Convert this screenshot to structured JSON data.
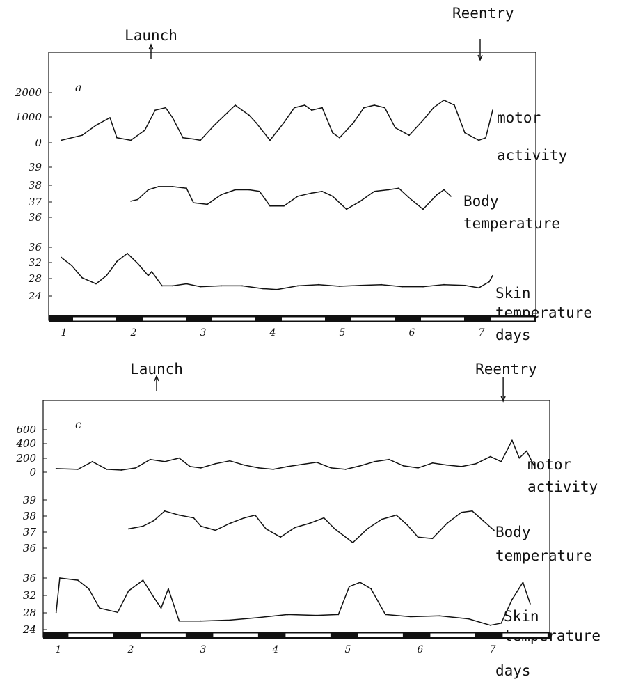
{
  "colors": {
    "ink": "#111111",
    "paper": "#ffffff"
  },
  "chart_data": [
    {
      "type": "line",
      "panel_label": "a",
      "launch_label": "Launch",
      "reentry_label": "Reentry",
      "launch_day": 2.3,
      "reentry_day": 7.2,
      "x_range": [
        1,
        7.3
      ],
      "day_ticks": [
        "1",
        "2",
        "3",
        "4",
        "5",
        "6",
        "7"
      ],
      "xlabel": "days",
      "subplots": [
        {
          "series_label": [
            "motor",
            "activity"
          ],
          "yticks": [
            "2000",
            "1000",
            "0"
          ],
          "ylim": [
            0,
            2000
          ],
          "x": [
            1.0,
            1.3,
            1.5,
            1.7,
            1.8,
            2.0,
            2.2,
            2.35,
            2.5,
            2.6,
            2.75,
            2.9,
            3.0,
            3.2,
            3.35,
            3.5,
            3.7,
            3.8,
            4.0,
            4.2,
            4.35,
            4.5,
            4.6,
            4.75,
            4.9,
            5.0,
            5.2,
            5.35,
            5.5,
            5.65,
            5.8,
            6.0,
            6.2,
            6.35,
            6.5,
            6.65,
            6.8,
            7.0,
            7.1,
            7.2
          ],
          "y": [
            100,
            300,
            700,
            1000,
            200,
            100,
            500,
            1300,
            1400,
            1000,
            200,
            150,
            100,
            700,
            1100,
            1500,
            1100,
            800,
            100,
            800,
            1400,
            1500,
            1300,
            1400,
            400,
            200,
            800,
            1400,
            1500,
            1400,
            600,
            300,
            900,
            1400,
            1700,
            1500,
            400,
            100,
            200,
            1300
          ]
        },
        {
          "series_label": [
            "Body",
            "temperature"
          ],
          "yticks": [
            "39",
            "38",
            "37",
            "36"
          ],
          "ylim": [
            35.9,
            39
          ],
          "x": [
            2.0,
            2.1,
            2.25,
            2.4,
            2.6,
            2.8,
            2.9,
            3.1,
            3.3,
            3.5,
            3.7,
            3.85,
            4.0,
            4.2,
            4.4,
            4.6,
            4.75,
            4.9,
            5.1,
            5.3,
            5.5,
            5.7,
            5.85,
            6.0,
            6.2,
            6.4,
            6.5,
            6.6
          ],
          "y": [
            36.9,
            37.0,
            37.6,
            37.8,
            37.8,
            37.7,
            36.8,
            36.7,
            37.3,
            37.6,
            37.6,
            37.5,
            36.6,
            36.6,
            37.2,
            37.4,
            37.5,
            37.2,
            36.4,
            36.9,
            37.5,
            37.6,
            37.7,
            37.1,
            36.4,
            37.3,
            37.6,
            37.2
          ]
        },
        {
          "series_label": [
            "Skin",
            "temperature"
          ],
          "yticks": [
            "36",
            "32",
            "28",
            "24"
          ],
          "ylim": [
            24,
            36
          ],
          "x": [
            1.0,
            1.15,
            1.3,
            1.5,
            1.65,
            1.8,
            1.95,
            2.1,
            2.25,
            2.3,
            2.45,
            2.6,
            2.8,
            3.0,
            3.3,
            3.6,
            3.9,
            4.1,
            4.4,
            4.7,
            5.0,
            5.3,
            5.6,
            5.9,
            6.2,
            6.5,
            6.8,
            7.0,
            7.15,
            7.2
          ],
          "y": [
            33.5,
            31.5,
            28.5,
            27.0,
            29.0,
            32.5,
            34.5,
            32.0,
            29.0,
            30.0,
            26.5,
            26.5,
            27.0,
            26.3,
            26.5,
            26.5,
            25.8,
            25.6,
            26.5,
            26.8,
            26.4,
            26.6,
            26.8,
            26.3,
            26.3,
            26.8,
            26.6,
            26.0,
            27.5,
            29.0
          ]
        }
      ]
    },
    {
      "type": "line",
      "panel_label": "c",
      "launch_label": "Launch",
      "reentry_label": "Reentry",
      "launch_day": 2.55,
      "reentry_day": 7.35,
      "x_range": [
        1,
        7.6
      ],
      "day_ticks": [
        "1",
        "2",
        "3",
        "4",
        "5",
        "6",
        "7"
      ],
      "xlabel": "days",
      "subplots": [
        {
          "series_label": [
            "motor",
            "activity"
          ],
          "yticks": [
            "600",
            "400",
            "200",
            "0"
          ],
          "ylim": [
            0,
            600
          ],
          "x": [
            1.0,
            1.3,
            1.5,
            1.7,
            1.9,
            2.1,
            2.3,
            2.5,
            2.7,
            2.85,
            3.0,
            3.2,
            3.4,
            3.6,
            3.8,
            4.0,
            4.2,
            4.4,
            4.6,
            4.8,
            5.0,
            5.2,
            5.4,
            5.6,
            5.8,
            6.0,
            6.2,
            6.4,
            6.6,
            6.8,
            7.0,
            7.15,
            7.3,
            7.4,
            7.5,
            7.6
          ],
          "y": [
            50,
            40,
            150,
            40,
            30,
            60,
            180,
            150,
            200,
            80,
            60,
            120,
            160,
            100,
            60,
            40,
            80,
            110,
            140,
            60,
            40,
            90,
            150,
            180,
            90,
            60,
            130,
            100,
            80,
            120,
            220,
            150,
            450,
            200,
            300,
            100
          ]
        },
        {
          "series_label": [
            "Body",
            "temperature"
          ],
          "yticks": [
            "39",
            "38",
            "37",
            "36"
          ],
          "ylim": [
            35.8,
            39.3
          ],
          "x": [
            2.0,
            2.2,
            2.35,
            2.5,
            2.7,
            2.9,
            3.0,
            3.2,
            3.4,
            3.6,
            3.75,
            3.9,
            4.1,
            4.3,
            4.5,
            4.7,
            4.85,
            5.1,
            5.3,
            5.5,
            5.7,
            5.85,
            6.0,
            6.2,
            6.4,
            6.6,
            6.75,
            6.9,
            7.05
          ],
          "y": [
            37.2,
            37.4,
            37.8,
            38.5,
            38.2,
            38.0,
            37.4,
            37.1,
            37.6,
            38.0,
            38.2,
            37.2,
            36.6,
            37.3,
            37.6,
            38.0,
            37.2,
            36.2,
            37.2,
            37.9,
            38.2,
            37.5,
            36.6,
            36.5,
            37.6,
            38.4,
            38.5,
            37.8,
            37.1
          ]
        },
        {
          "series_label": [
            "Skin",
            "temperature"
          ],
          "yticks": [
            "36",
            "32",
            "28",
            "24"
          ],
          "ylim": [
            24,
            36
          ],
          "x": [
            1.0,
            1.05,
            1.3,
            1.45,
            1.6,
            1.85,
            2.0,
            2.2,
            2.35,
            2.45,
            2.55,
            2.7,
            3.0,
            3.4,
            3.8,
            4.2,
            4.6,
            4.9,
            5.05,
            5.2,
            5.35,
            5.55,
            5.9,
            6.3,
            6.7,
            7.0,
            7.15,
            7.3,
            7.45,
            7.55
          ],
          "y": [
            28.0,
            36.0,
            35.5,
            33.5,
            29.0,
            28.0,
            33.0,
            35.5,
            31.5,
            29.0,
            33.5,
            26.0,
            26.0,
            26.2,
            26.8,
            27.5,
            27.3,
            27.5,
            34.0,
            35.0,
            33.5,
            27.5,
            27.0,
            27.2,
            26.5,
            25.0,
            25.5,
            31.0,
            35.0,
            30.0
          ]
        }
      ]
    }
  ]
}
